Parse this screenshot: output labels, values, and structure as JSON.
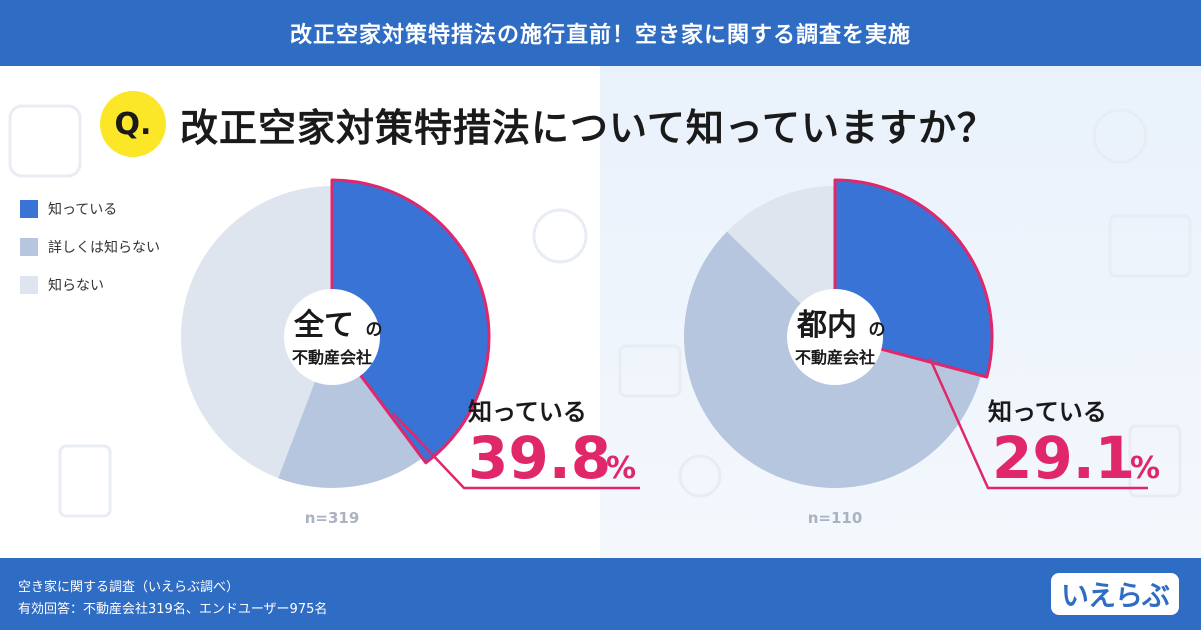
{
  "banner": {
    "title": "改正空家対策特措法の施行直前！空き家に関する調査を実施"
  },
  "question": {
    "badge": "Q.",
    "text": "改正空家対策特措法について知っていますか？"
  },
  "legend": [
    {
      "label": "知っている",
      "color": "#3a73d6"
    },
    {
      "label": "詳しくは知らない",
      "color": "#b6c6de"
    },
    {
      "label": "知らない",
      "color": "#dfe5ee"
    }
  ],
  "colors": {
    "highlight": "#e0276a",
    "dark_text": "#1a1a1a",
    "n_text": "#aab3c0"
  },
  "chart_data": [
    {
      "type": "pie",
      "center_label_big": "全て",
      "center_label_big_suffix": "の",
      "center_label_small": "不動産会社",
      "n_label": "n=319",
      "categories": [
        "知っている",
        "詳しくは知らない",
        "知らない"
      ],
      "values": [
        39.8,
        16.0,
        44.2
      ],
      "callout_label": "知っている",
      "callout_value": "39.8",
      "callout_unit": "%"
    },
    {
      "type": "pie",
      "center_label_big": "都内",
      "center_label_big_suffix": "の",
      "center_label_small": "不動産会社",
      "n_label": "n=110",
      "categories": [
        "知っている",
        "詳しくは知らない",
        "知らない"
      ],
      "values": [
        29.1,
        58.2,
        12.7
      ],
      "callout_label": "知っている",
      "callout_value": "29.1",
      "callout_unit": "%"
    }
  ],
  "footer": {
    "line1": "空き家に関する調査（いえらぶ調べ）",
    "line2": "有効回答：不動産会社319名、エンドユーザー975名",
    "logo": "いえらぶ"
  }
}
